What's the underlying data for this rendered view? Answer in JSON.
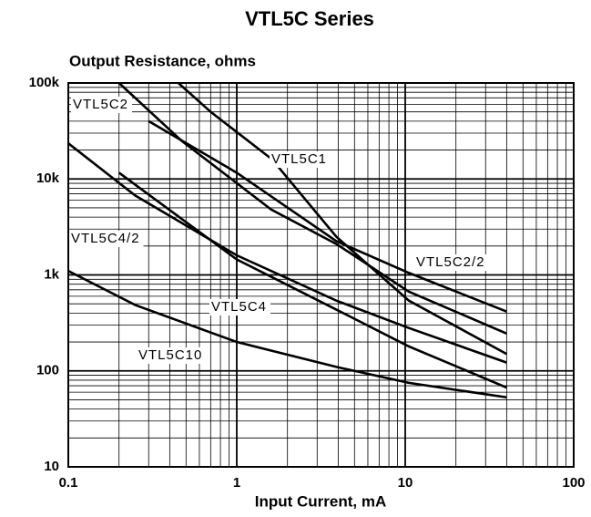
{
  "chart_data": {
    "type": "line",
    "title": "VTL5C Series",
    "y_label": "Output Resistance, ohms",
    "x_label": "Input Current, mA",
    "log_x": true,
    "log_y": true,
    "grid": true,
    "xlim": [
      0.1,
      100
    ],
    "ylim": [
      10,
      100000
    ],
    "xticks": [
      0.1,
      1,
      10,
      100
    ],
    "yticks": [
      10,
      100,
      {
        "value": 1000,
        "label": "1k"
      },
      {
        "value": 10000,
        "label": "10k"
      },
      {
        "value": 100000,
        "label": "100k"
      }
    ],
    "series": [
      {
        "name": "VTL5C1",
        "color": "#000000",
        "x": [
          0.45,
          0.7,
          1.62,
          3.9,
          10.5,
          40
        ],
        "values": [
          100000,
          50000,
          16000,
          2500,
          540,
          150
        ]
      },
      {
        "name": "VTL5C2",
        "color": "#000000",
        "x": [
          0.2,
          0.47,
          1.6,
          3.9,
          10.5,
          40
        ],
        "values": [
          100000,
          25000,
          4800,
          2100,
          670,
          245
        ]
      },
      {
        "name": "VTL5C2/2",
        "color": "#000000",
        "x": [
          0.3,
          1,
          3.9,
          10.5,
          40
        ],
        "values": [
          40000,
          11600,
          2250,
          1050,
          415
        ]
      },
      {
        "name": "VTL5C4/2",
        "color": "#000000",
        "x": [
          0.1,
          0.25,
          1,
          3.9,
          10.5,
          40
        ],
        "values": [
          23500,
          6700,
          1600,
          540,
          280,
          122
        ]
      },
      {
        "name": "VTL5C4",
        "color": "#000000",
        "x": [
          0.2,
          1,
          3.9,
          10.5,
          40
        ],
        "values": [
          11600,
          1450,
          435,
          180,
          67
        ]
      },
      {
        "name": "VTL5C10",
        "color": "#000000",
        "x": [
          0.1,
          0.25,
          1,
          3.9,
          10.5,
          40
        ],
        "values": [
          1100,
          485,
          200,
          110,
          75,
          53
        ]
      }
    ]
  }
}
